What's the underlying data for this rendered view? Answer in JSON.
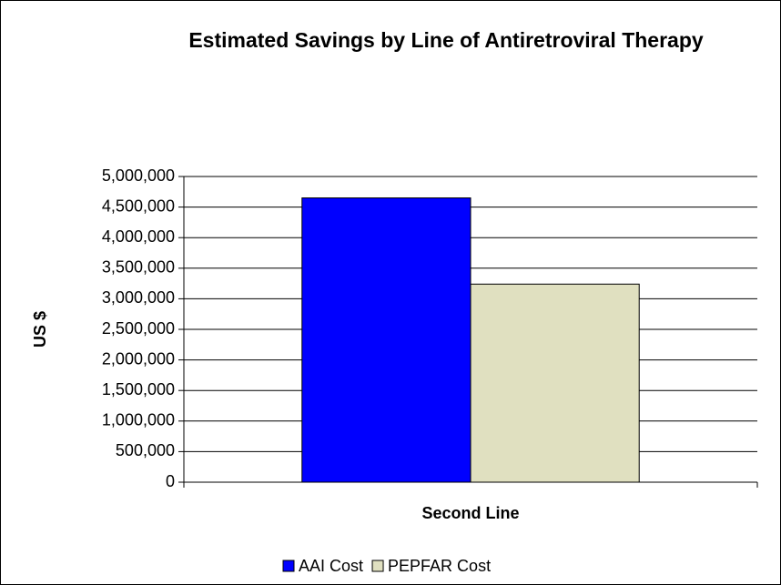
{
  "chart_data": {
    "type": "bar",
    "title": "Estimated Savings by Line of Antiretroviral Therapy",
    "ylabel": "US $",
    "categories": [
      "Second Line"
    ],
    "series": [
      {
        "name": "AAI Cost",
        "color": "#0000ff",
        "values": [
          4650000
        ]
      },
      {
        "name": "PEPFAR Cost",
        "color": "#e0e0c0",
        "values": [
          3240000
        ]
      }
    ],
    "ylim": [
      0,
      5000000
    ],
    "yticks": [
      0,
      {
        "value": 500000,
        "label": "500,000"
      },
      {
        "value": 1000000,
        "label": "1,000,000"
      },
      {
        "value": 1500000,
        "label": "1,500,000"
      },
      {
        "value": 2000000,
        "label": "2,000,000"
      },
      {
        "value": 2500000,
        "label": "2,500,000"
      },
      {
        "value": 3000000,
        "label": "3,000,000"
      },
      {
        "value": 3500000,
        "label": "3,500,000"
      },
      {
        "value": 4000000,
        "label": "4,000,000"
      },
      {
        "value": 4500000,
        "label": "4,500,000"
      },
      {
        "value": 5000000,
        "label": "5,000,000"
      }
    ],
    "grid": true,
    "legend": "bottom"
  }
}
